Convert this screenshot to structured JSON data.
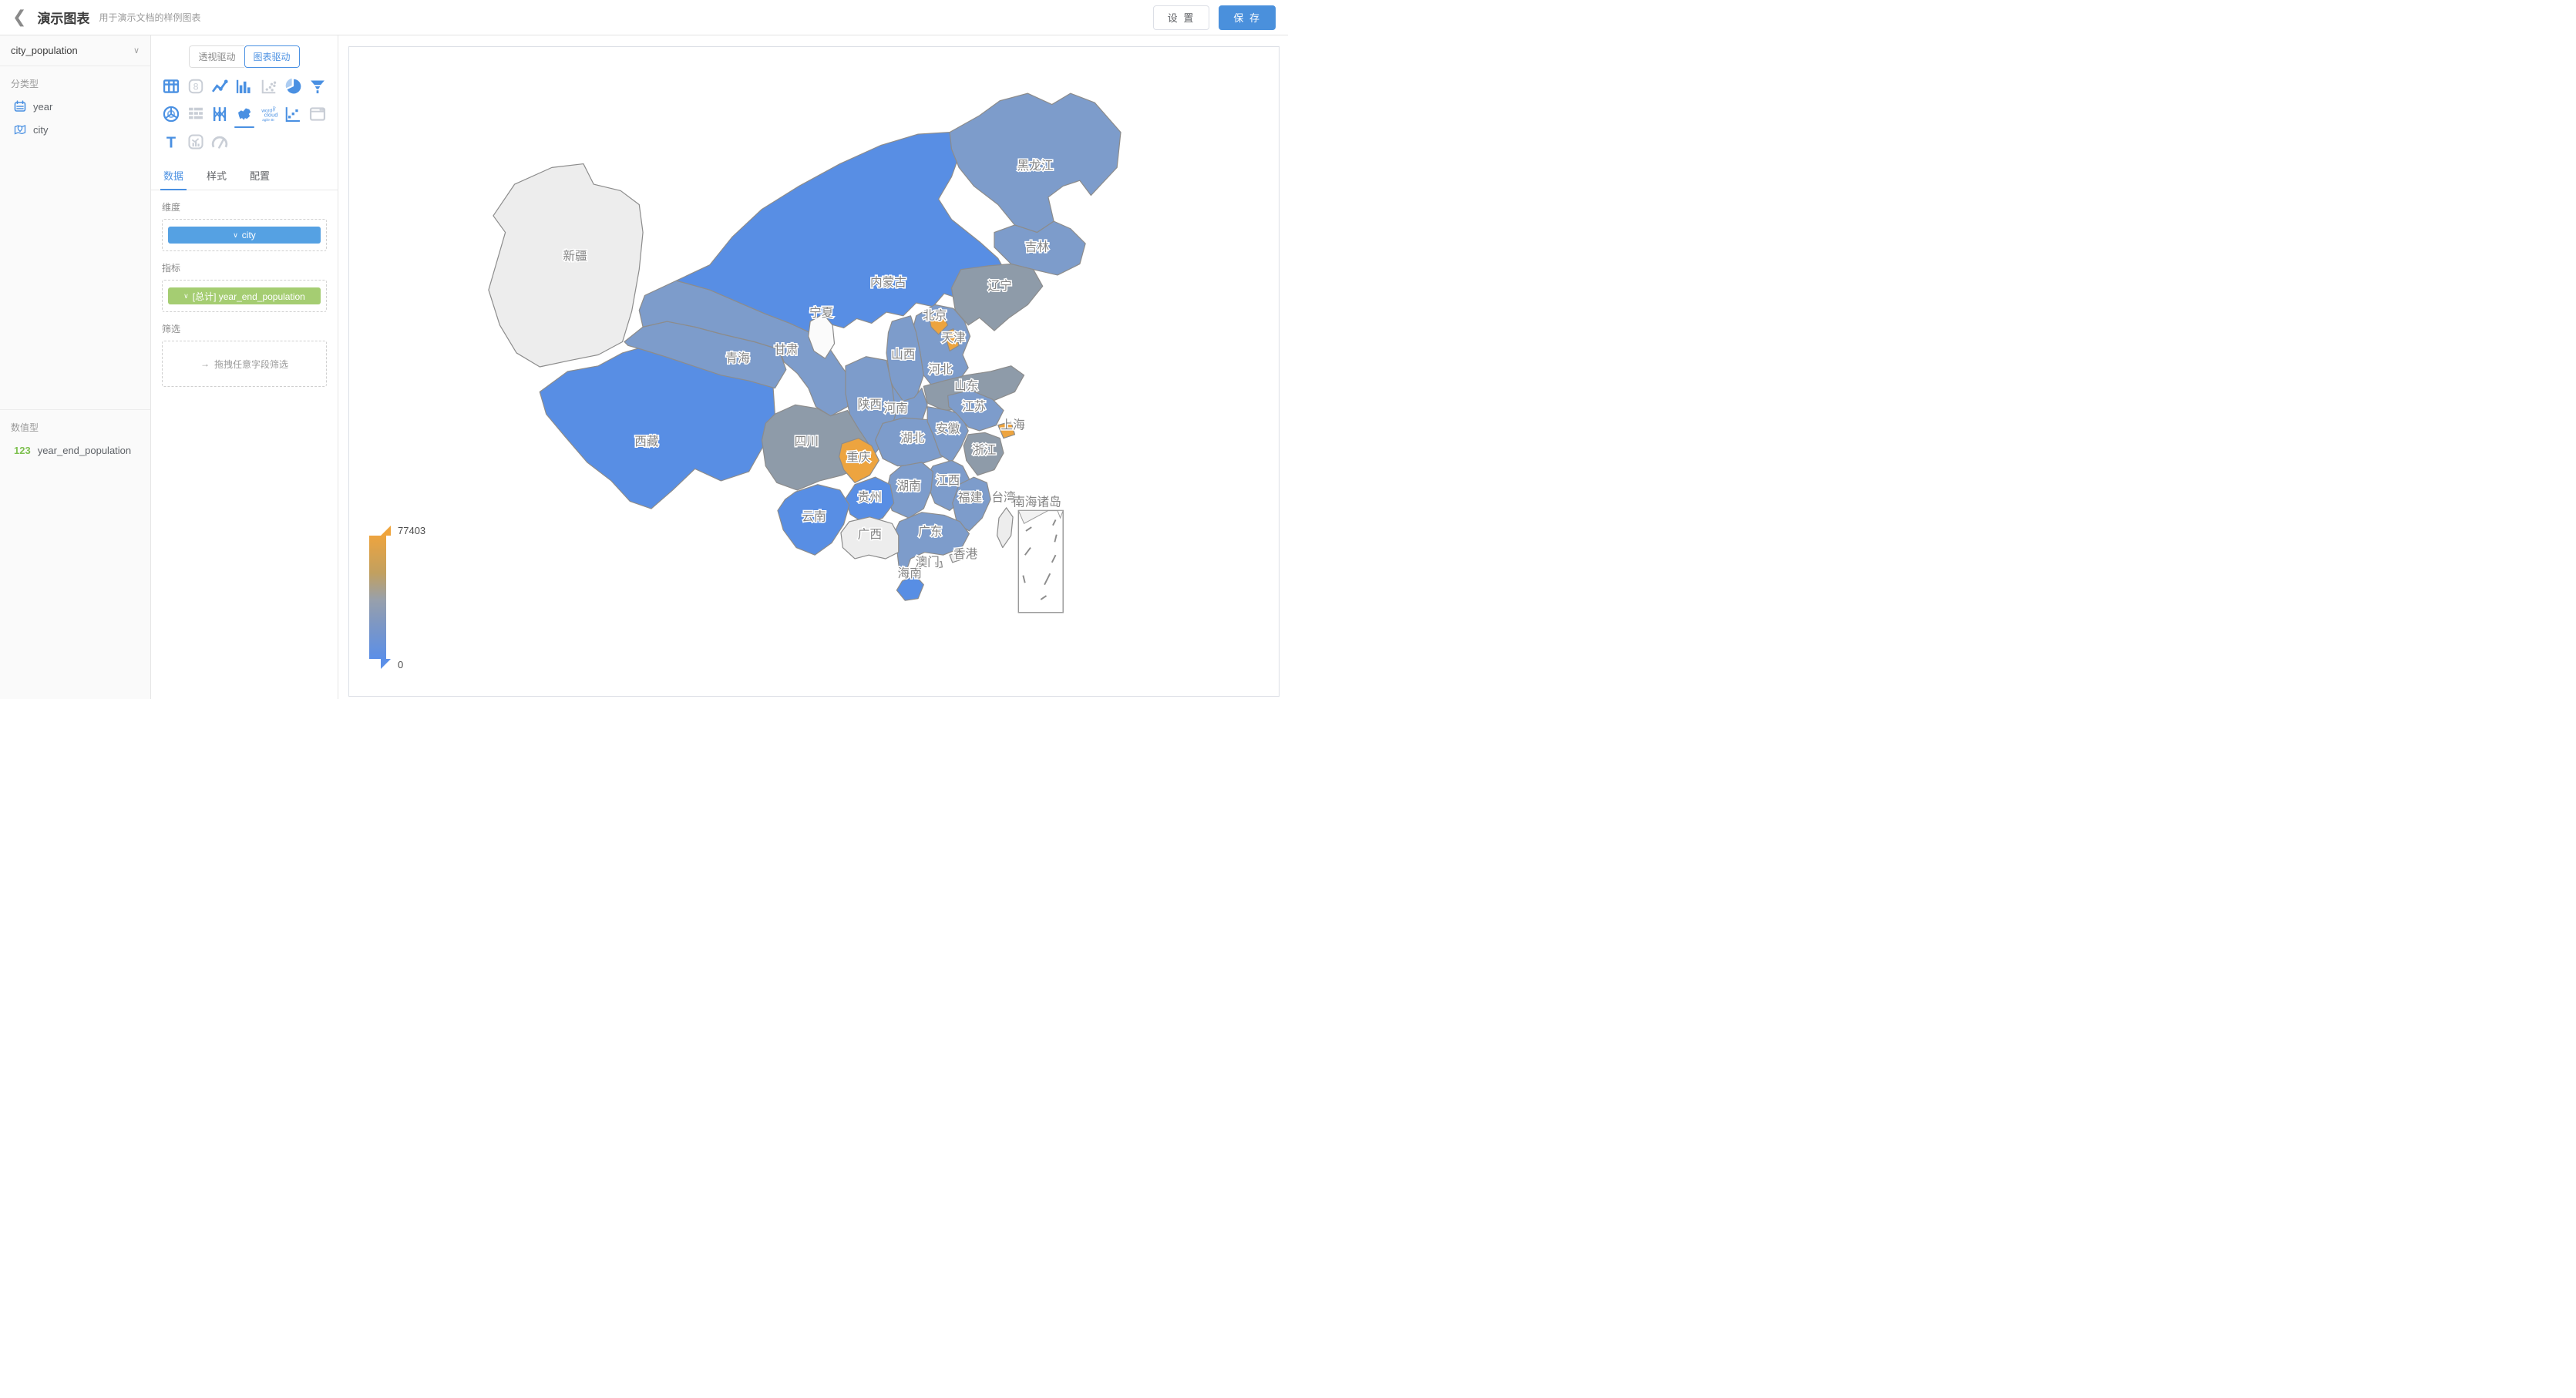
{
  "header": {
    "title": "演示图表",
    "subtitle": "用于演示文档的样例图表",
    "settings_label": "设 置",
    "save_label": "保 存"
  },
  "colors": {
    "accent_blue": "#4a90e2",
    "save_blue": "#4a90dc",
    "pill_blue": "#55a1e3",
    "pill_green": "#a5cd72",
    "field_icon_blue": "#4a90e2",
    "numeric_green": "#7ec050",
    "map_label_gray": "#848484",
    "tones": {
      "orange": "#eda43f",
      "gray": "#8e9ba9",
      "steel": "#7d9ccb",
      "bright": "#588ee4",
      "nodata": "#ededed",
      "blank": "#fbfbfb"
    }
  },
  "dataset_panel": {
    "dataset_name": "city_population",
    "categorical_section_label": "分类型",
    "categorical_fields": [
      {
        "icon": "calendar-icon",
        "name": "year"
      },
      {
        "icon": "map-pin-icon",
        "name": "city"
      }
    ],
    "numeric_section_label": "数值型",
    "numeric_fields": [
      {
        "icon": "123",
        "name": "year_end_population"
      }
    ]
  },
  "chart_panel": {
    "mode_toggle": {
      "options": [
        "透视驱动",
        "图表驱动"
      ],
      "selected": "图表驱动"
    },
    "chart_types": [
      {
        "name": "table",
        "state": "enabled"
      },
      {
        "name": "indicator-card",
        "state": "disabled"
      },
      {
        "name": "line-chart",
        "state": "enabled"
      },
      {
        "name": "bar-chart",
        "state": "enabled"
      },
      {
        "name": "scatter-chart",
        "state": "disabled"
      },
      {
        "name": "pie-chart",
        "state": "enabled"
      },
      {
        "name": "funnel-chart",
        "state": "enabled"
      },
      {
        "name": "radar-chart",
        "state": "enabled"
      },
      {
        "name": "pivot-table",
        "state": "disabled"
      },
      {
        "name": "parallel-chart",
        "state": "enabled"
      },
      {
        "name": "china-map",
        "state": "selected"
      },
      {
        "name": "word-cloud",
        "state": "enabled"
      },
      {
        "name": "waterfall-chart",
        "state": "enabled"
      },
      {
        "name": "iframe",
        "state": "disabled"
      },
      {
        "name": "text",
        "state": "enabled"
      },
      {
        "name": "kpi-card",
        "state": "disabled"
      },
      {
        "name": "gauge",
        "state": "disabled"
      }
    ],
    "tabs": [
      {
        "label": "数据",
        "active": true
      },
      {
        "label": "样式",
        "active": false
      },
      {
        "label": "配置",
        "active": false
      }
    ],
    "dimension": {
      "label": "维度",
      "pill": "city"
    },
    "metric": {
      "label": "指标",
      "pill": "[总计] year_end_population"
    },
    "filter": {
      "label": "筛选",
      "placeholder": "拖拽任意字段筛选"
    }
  },
  "chart_data": {
    "type": "map",
    "subtype": "china-choropleth",
    "dimension": "city",
    "metric": "[总计] year_end_population",
    "legend": {
      "max": "77403",
      "min": "0",
      "max_color": "#eda43f",
      "min_color": "#5b8fe8"
    },
    "inset_label": "南海诸岛",
    "regions": [
      {
        "name": "新疆",
        "tone": "nodata"
      },
      {
        "name": "西藏",
        "tone": "bright"
      },
      {
        "name": "青海",
        "tone": "steel"
      },
      {
        "name": "甘肃",
        "tone": "steel"
      },
      {
        "name": "内蒙古",
        "tone": "bright"
      },
      {
        "name": "黑龙江",
        "tone": "steel"
      },
      {
        "name": "吉林",
        "tone": "steel"
      },
      {
        "name": "辽宁",
        "tone": "gray"
      },
      {
        "name": "河北",
        "tone": "steel"
      },
      {
        "name": "山西",
        "tone": "steel"
      },
      {
        "name": "山东",
        "tone": "gray"
      },
      {
        "name": "河南",
        "tone": "steel"
      },
      {
        "name": "陕西",
        "tone": "steel"
      },
      {
        "name": "四川",
        "tone": "gray"
      },
      {
        "name": "湖北",
        "tone": "steel"
      },
      {
        "name": "安徽",
        "tone": "steel"
      },
      {
        "name": "江苏",
        "tone": "steel"
      },
      {
        "name": "浙江",
        "tone": "gray"
      },
      {
        "name": "江西",
        "tone": "steel"
      },
      {
        "name": "湖南",
        "tone": "steel"
      },
      {
        "name": "贵州",
        "tone": "bright"
      },
      {
        "name": "云南",
        "tone": "bright"
      },
      {
        "name": "福建",
        "tone": "steel"
      },
      {
        "name": "广东",
        "tone": "steel"
      },
      {
        "name": "广西",
        "tone": "nodata"
      },
      {
        "name": "海南",
        "tone": "bright"
      },
      {
        "name": "台湾",
        "tone": "nodata"
      },
      {
        "name": "宁夏",
        "tone": "blank"
      },
      {
        "name": "重庆",
        "tone": "orange"
      },
      {
        "name": "北京",
        "tone": "orange"
      },
      {
        "name": "天津",
        "tone": "orange"
      },
      {
        "name": "上海",
        "tone": "orange"
      },
      {
        "name": "香港",
        "tone": "nodata"
      },
      {
        "name": "澳门",
        "tone": "nodata"
      }
    ]
  }
}
